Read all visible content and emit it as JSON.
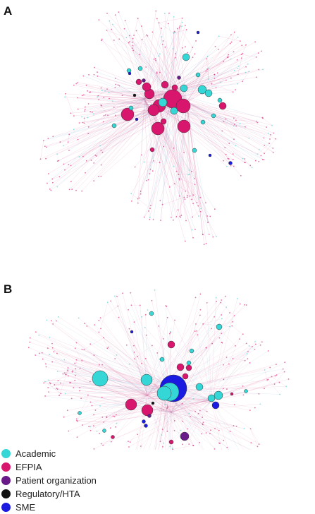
{
  "panels": [
    {
      "letter": "A"
    },
    {
      "letter": "B"
    }
  ],
  "legend": [
    {
      "label": "Academic",
      "color": "#35d6d6"
    },
    {
      "label": "EFPIA",
      "color": "#d8166e"
    },
    {
      "label": "Patient organization",
      "color": "#6a1b8a"
    },
    {
      "label": "Regulatory/HTA",
      "color": "#111111"
    },
    {
      "label": "SME",
      "color": "#1a1ae0"
    }
  ],
  "edge_colors": {
    "pink": "#e07aa8",
    "blue": "#7fb0d8"
  }
}
